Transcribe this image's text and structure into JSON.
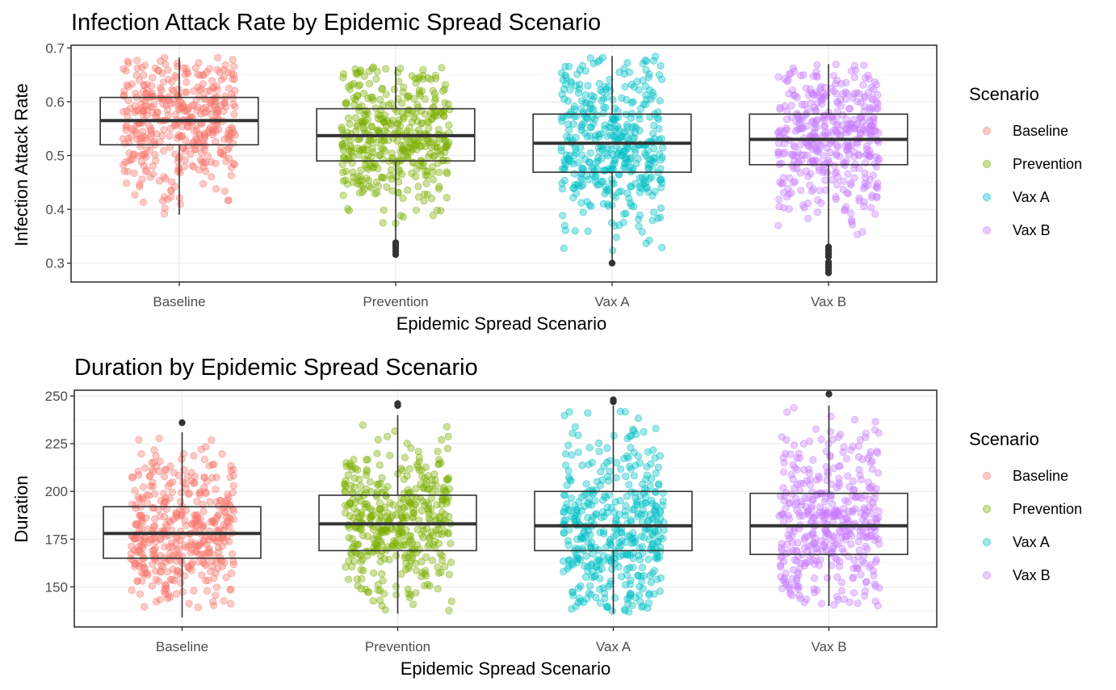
{
  "colors": {
    "Baseline": "#F8766D",
    "Prevention": "#7CAE00",
    "Vax A": "#00BFC4",
    "Vax B": "#C77CFF",
    "box": "#333333",
    "grid_major": "#ebebeb",
    "grid_minor": "#f5f5f5"
  },
  "legend": {
    "title": "Scenario",
    "items": [
      "Baseline",
      "Prevention",
      "Vax A",
      "Vax B"
    ]
  },
  "chart_data": [
    {
      "type": "box",
      "title": "Infection Attack Rate by Epidemic Spread Scenario",
      "xlabel": "Epidemic Spread Scenario",
      "ylabel": "Infection Attack Rate",
      "categories": [
        "Baseline",
        "Prevention",
        "Vax A",
        "Vax B"
      ],
      "ylim": [
        0.265,
        0.705
      ],
      "yticks": [
        0.3,
        0.4,
        0.5,
        0.6,
        0.7
      ],
      "yticklabels": [
        "0.3",
        "0.4",
        "0.5",
        "0.6",
        "0.7"
      ],
      "legend_position": "right",
      "grid": true,
      "boxes": [
        {
          "name": "Baseline",
          "min": 0.39,
          "q1": 0.52,
          "median": 0.565,
          "q3": 0.608,
          "max": 0.682,
          "outliers": []
        },
        {
          "name": "Prevention",
          "min": 0.342,
          "q1": 0.49,
          "median": 0.537,
          "q3": 0.587,
          "max": 0.665,
          "outliers": [
            0.316,
            0.322,
            0.328,
            0.333,
            0.338
          ]
        },
        {
          "name": "Vax A",
          "min": 0.3,
          "q1": 0.469,
          "median": 0.523,
          "q3": 0.577,
          "max": 0.685,
          "outliers": [
            0.3
          ]
        },
        {
          "name": "Vax B",
          "min": 0.336,
          "q1": 0.483,
          "median": 0.53,
          "q3": 0.577,
          "max": 0.67,
          "outliers": [
            0.282,
            0.287,
            0.292,
            0.297,
            0.302,
            0.312,
            0.318,
            0.324,
            0.33
          ]
        }
      ],
      "jitter": {
        "points_per_group": 420,
        "spread": [
          0.52,
          0.5,
          0.47,
          0.47
        ]
      }
    },
    {
      "type": "box",
      "title": "Duration by Epidemic Spread Scenario",
      "xlabel": "Epidemic Spread Scenario",
      "ylabel": "Duration",
      "categories": [
        "Baseline",
        "Prevention",
        "Vax A",
        "Vax B"
      ],
      "ylim": [
        129,
        253
      ],
      "yticks": [
        150,
        175,
        200,
        225,
        250
      ],
      "yticklabels": [
        "150",
        "175",
        "200",
        "225",
        "250"
      ],
      "legend_position": "right",
      "grid": true,
      "boxes": [
        {
          "name": "Baseline",
          "min": 134,
          "q1": 165,
          "median": 178,
          "q3": 192,
          "max": 231,
          "outliers": [
            236
          ]
        },
        {
          "name": "Prevention",
          "min": 136,
          "q1": 169,
          "median": 183,
          "q3": 198,
          "max": 240,
          "outliers": [
            245,
            246
          ]
        },
        {
          "name": "Vax A",
          "min": 136,
          "q1": 169,
          "median": 182,
          "q3": 200,
          "max": 245,
          "outliers": [
            247,
            248
          ]
        },
        {
          "name": "Vax B",
          "min": 140,
          "q1": 167,
          "median": 182,
          "q3": 199,
          "max": 245,
          "outliers": [
            251
          ]
        }
      ],
      "jitter": {
        "points_per_group": 420,
        "spread": [
          0.48,
          0.5,
          0.47,
          0.47
        ]
      }
    }
  ]
}
